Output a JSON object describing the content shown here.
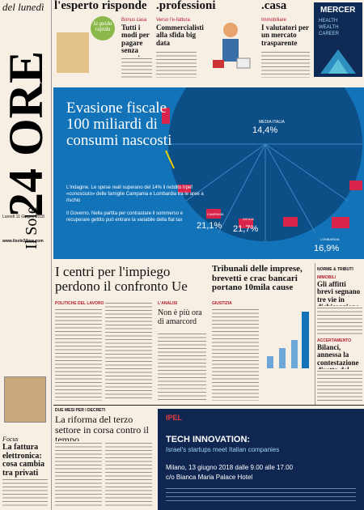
{
  "masthead": {
    "edition": "del lunedì",
    "name": "24 ORE",
    "prefix": "Il Sole",
    "date": "Lunedì 11 Giugno 2018",
    "site": "www.ilsole24ore.com"
  },
  "top": {
    "esperto": {
      "title": "l'esperto risponde",
      "guida": "la guida rapida",
      "kicker": "Bonus casa",
      "headline": "Tutti i modi per pagare senza errori"
    },
    "professioni": {
      "title": ".professioni",
      "kicker": "Verso l'e-fattura",
      "headline": "Commercialisti alla sfida big data"
    },
    "casa": {
      "title": ".casa",
      "kicker": "Immobiliare",
      "headline": "I valutatori per un mercato trasparente"
    },
    "ad": {
      "brand": "MERCER",
      "tagline": "HEALTH WEALTH CAREER"
    }
  },
  "lead": {
    "headline": "Evasione fiscale 100 miliardi di consumi nascosti",
    "text1": "L'indagine. Le spese reali superano del 14% il reddito Irpef «conosciuto» delle famiglie Campania e Lombardia tra le aree a rischio",
    "text2": "Il Governo. Nella partita per contrastare il sommerso e recuperare gettito può entrare la variabile della flat tax",
    "chart": {
      "media_label": "MEDIA ITALIA",
      "media": "14,4%",
      "regions": [
        {
          "name": "CAMPANIA",
          "value": "21,1%"
        },
        {
          "name": "SICILIA",
          "value": "21,7%"
        },
        {
          "name": "LOMBARDIA",
          "value": "16,9%"
        }
      ]
    }
  },
  "stories": {
    "impiego": {
      "headline": "I centri per l'impiego perdono il confronto Ue",
      "section": "POLITICHE DEL LAVORO"
    },
    "analisi": {
      "section": "L'ANALISI",
      "headline": "Non è più ora di amarcord"
    },
    "giustizia": {
      "section": "GIUSTIZIA",
      "headline": "Tribunali delle imprese, brevetti e crac bancari portano 10mila cause"
    },
    "norme": {
      "section": "NORME & TRIBUTI",
      "kicker1": "IMMOBILI",
      "headline1": "Gli affitti brevi segnano tre vie in dichiarazione",
      "kicker2": "ACCERTAMENTO",
      "headline2": "Bilanci, annessa la contestazione diretta del Fisco"
    },
    "terzo": {
      "section": "DUE MESI PER I DECRETI",
      "headline": "La riforma del terzo settore in corsa contro il tempo"
    },
    "focus": {
      "kicker": "Focus",
      "headline": "La fattura elettronica: cosa cambia tra privati"
    }
  },
  "ad": {
    "title": "TECH INNOVATION:",
    "subtitle": "Israel's startups meet Italian companies",
    "date": "Milano, 13 giugno 2018 dalle 9.00 alle 17.00",
    "place": "c/o Bianca Maria Palace Hotel"
  }
}
